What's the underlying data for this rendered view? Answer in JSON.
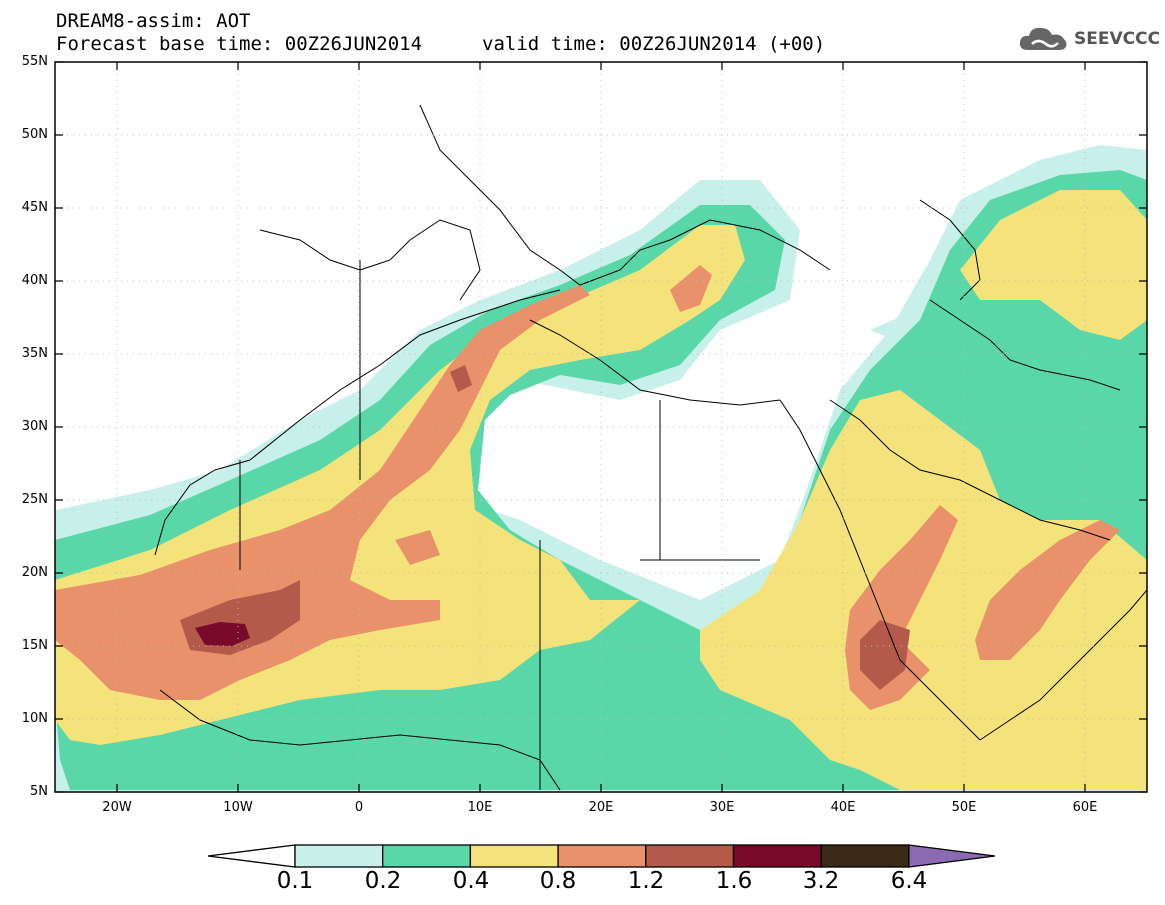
{
  "title": {
    "line1": "DREAM8-assim: AOT",
    "base_time": "Forecast base time: 00Z26JUN2014",
    "valid_time": "valid time: 00Z26JUN2014 (+00)"
  },
  "logo": {
    "text": "SEEVCCC",
    "icon": "cloud-icon"
  },
  "map": {
    "lat_labels": [
      "55N",
      "50N",
      "45N",
      "40N",
      "35N",
      "30N",
      "25N",
      "20N",
      "15N",
      "10N",
      "5N"
    ],
    "lon_labels": [
      "20W",
      "10W",
      "0",
      "10E",
      "20E",
      "30E",
      "40E",
      "50E",
      "60E"
    ],
    "extent": {
      "lon_min": -25,
      "lon_max": 65,
      "lat_min": 5,
      "lat_max": 55
    }
  },
  "legend": {
    "levels": [
      "0.1",
      "0.2",
      "0.4",
      "0.8",
      "1.2",
      "1.6",
      "3.2",
      "6.4"
    ],
    "colors": [
      "#ffffff",
      "#c8f0ea",
      "#5ad7a8",
      "#f4e27a",
      "#e8916a",
      "#b45a4a",
      "#7a0a2a",
      "#3c2a18",
      "#8a6ab0"
    ]
  }
}
